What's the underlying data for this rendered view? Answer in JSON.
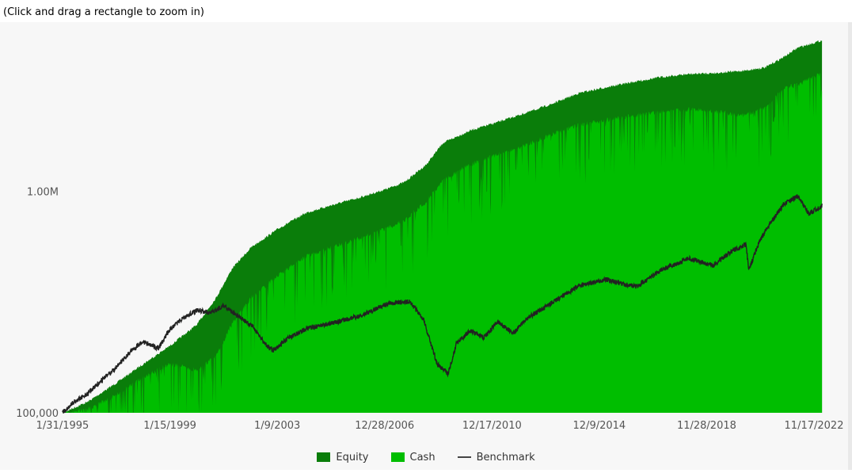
{
  "hint": "(Click and drag a rectangle to zoom in)",
  "chart_data": {
    "type": "area",
    "y_scale": "log",
    "ylim": [
      100000,
      5000000
    ],
    "xlim": [
      "1995-01-31",
      "2022-11-17"
    ],
    "y_ticks": [
      {
        "value": 100000,
        "label": "100,000"
      },
      {
        "value": 1000000,
        "label": "1.00M"
      }
    ],
    "x_ticks": [
      "1/31/1995",
      "1/15/1999",
      "1/9/2003",
      "12/28/2006",
      "12/17/2010",
      "12/9/2014",
      "11/28/2018",
      "11/17/2022"
    ],
    "grid": false,
    "legend_position": "bottom",
    "colors": {
      "equity": "#0a7d0a",
      "cash": "#00be00",
      "benchmark": "#222222",
      "plot_bg": "#f7f7f7"
    },
    "series": [
      {
        "name": "Equity",
        "kind": "stacked-area",
        "x": [
          1995.08,
          1996.0,
          1997.0,
          1998.0,
          1999.0,
          2000.0,
          2000.7,
          2001.3,
          2002.0,
          2003.0,
          2004.0,
          2005.0,
          2006.0,
          2007.0,
          2007.6,
          2008.4,
          2009.0,
          2010.0,
          2011.0,
          2012.0,
          2013.0,
          2014.0,
          2015.0,
          2016.0,
          2017.0,
          2018.0,
          2019.0,
          2020.0,
          2020.8,
          2021.5,
          2022.0,
          2022.88
        ],
        "values": [
          100000,
          112000,
          135000,
          165000,
          200000,
          250000,
          330000,
          450000,
          560000,
          680000,
          800000,
          870000,
          940000,
          1030000,
          1100000,
          1320000,
          1650000,
          1880000,
          2050000,
          2250000,
          2480000,
          2780000,
          2950000,
          3120000,
          3280000,
          3380000,
          3420000,
          3500000,
          3620000,
          4050000,
          4450000,
          4800000
        ]
      },
      {
        "name": "Cash",
        "kind": "stacked-area",
        "x": [
          1995.08,
          1996.0,
          1997.0,
          1998.0,
          1999.0,
          2000.0,
          2000.7,
          2001.3,
          2002.0,
          2003.0,
          2004.0,
          2005.0,
          2006.0,
          2007.0,
          2007.6,
          2008.4,
          2009.0,
          2010.0,
          2011.0,
          2012.0,
          2013.0,
          2014.0,
          2015.0,
          2016.0,
          2017.0,
          2018.0,
          2019.0,
          2020.0,
          2020.8,
          2021.5,
          2022.0,
          2022.88
        ],
        "values": [
          100000,
          106000,
          122000,
          148000,
          170000,
          160000,
          185000,
          260000,
          340000,
          430000,
          520000,
          580000,
          630000,
          700000,
          760000,
          920000,
          1150000,
          1350000,
          1500000,
          1650000,
          1850000,
          2050000,
          2150000,
          2250000,
          2350000,
          2400000,
          2350000,
          2250000,
          2450000,
          3000000,
          3100000,
          3500000
        ]
      },
      {
        "name": "Benchmark",
        "kind": "line",
        "x": [
          1995.08,
          1995.5,
          1996.0,
          1996.5,
          1997.0,
          1997.5,
          1998.0,
          1998.6,
          1999.0,
          1999.5,
          2000.0,
          2000.5,
          2001.0,
          2001.5,
          2002.0,
          2002.6,
          2002.8,
          2003.3,
          2004.0,
          2005.0,
          2006.0,
          2007.0,
          2007.8,
          2008.3,
          2008.8,
          2009.2,
          2009.5,
          2010.0,
          2010.5,
          2011.0,
          2011.6,
          2012.0,
          2013.0,
          2014.0,
          2015.0,
          2015.7,
          2016.1,
          2017.0,
          2018.0,
          2018.9,
          2019.5,
          2020.1,
          2020.2,
          2020.6,
          2021.0,
          2021.5,
          2022.0,
          2022.4,
          2022.88
        ],
        "values": [
          100000,
          112000,
          122000,
          140000,
          158000,
          185000,
          210000,
          195000,
          238000,
          268000,
          290000,
          282000,
          305000,
          272000,
          248000,
          198000,
          192000,
          215000,
          240000,
          255000,
          275000,
          312000,
          318000,
          262000,
          165000,
          150000,
          205000,
          235000,
          218000,
          258000,
          228000,
          262000,
          315000,
          375000,
          400000,
          378000,
          372000,
          440000,
          498000,
          462000,
          530000,
          575000,
          440000,
          600000,
          720000,
          880000,
          950000,
          790000,
          860000
        ]
      }
    ]
  },
  "legend": {
    "equity": "Equity",
    "cash": "Cash",
    "benchmark": "Benchmark"
  }
}
